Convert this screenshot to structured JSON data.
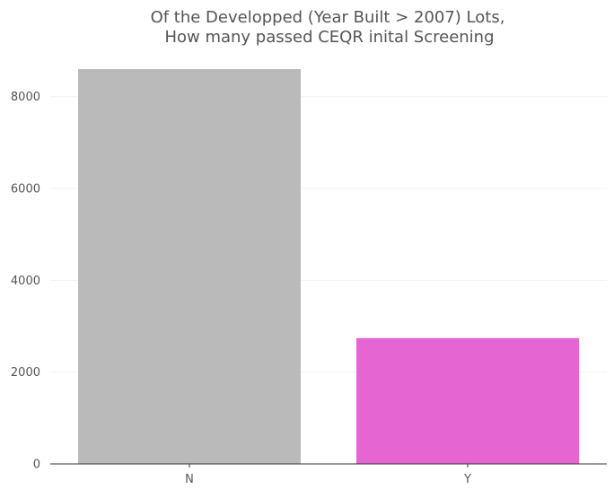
{
  "chart_data": {
    "type": "bar",
    "title_lines": [
      "Of the Developped (Year Built > 2007) Lots,",
      "How many passed CEQR inital Screening"
    ],
    "categories": [
      "N",
      "Y"
    ],
    "values": [
      8600,
      2740
    ],
    "colors": [
      "#bababa",
      "#e565d3"
    ],
    "ylim": [
      0,
      8600
    ],
    "yticks": [
      0,
      2000,
      4000,
      6000,
      8000
    ],
    "grid": true,
    "legend": "none"
  }
}
